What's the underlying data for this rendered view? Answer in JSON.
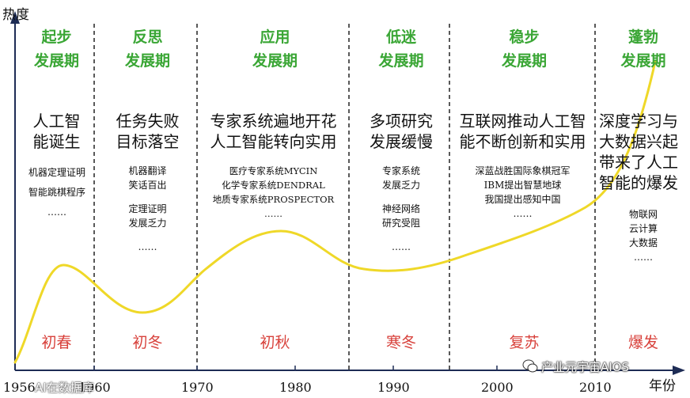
{
  "axes": {
    "y_label": "热度",
    "x_label": "年份",
    "x_ticks": [
      "1956",
      "1960",
      "1970",
      "1980",
      "1990",
      "2000",
      "2010"
    ]
  },
  "phases": [
    {
      "phase_line1": "起步",
      "phase_line2": "发展期",
      "heading": [
        "人工智",
        "能诞生"
      ],
      "details": [
        "机器定理证明",
        "智能跳棋程序",
        "……"
      ],
      "season": "初春"
    },
    {
      "phase_line1": "反思",
      "phase_line2": "发展期",
      "heading": [
        "任务失败",
        "目标落空"
      ],
      "details": [
        "机器翻译",
        "笑话百出",
        "定理证明",
        "发展乏力",
        "……"
      ],
      "season": "初冬"
    },
    {
      "phase_line1": "应用",
      "phase_line2": "发展期",
      "heading": [
        "专家系统遍地开花",
        "人工智能转向实用"
      ],
      "details": [
        "医疗专家系统MYCIN",
        "化学专家系统DENDRAL",
        "地质专家系统PROSPECTOR",
        "……"
      ],
      "season": "初秋"
    },
    {
      "phase_line1": "低迷",
      "phase_line2": "发展期",
      "heading": [
        "多项研究",
        "发展缓慢"
      ],
      "details": [
        "专家系统",
        "发展乏力",
        "神经网络",
        "研究受阻",
        "……"
      ],
      "season": "寒冬"
    },
    {
      "phase_line1": "稳步",
      "phase_line2": "发展期",
      "heading": [
        "互联网推动人工智",
        "能不断创新和实用"
      ],
      "details": [
        "深蓝战胜国际象棋冠军",
        "IBM提出智慧地球",
        "我国提出感知中国",
        "……"
      ],
      "season": "复苏"
    },
    {
      "phase_line1": "蓬勃",
      "phase_line2": "发展期",
      "heading": [
        "深度学习与",
        "大数据兴起",
        "带来了人工",
        "智能的爆发"
      ],
      "details": [
        "物联网",
        "云计算",
        "大数据",
        "……"
      ],
      "season": "爆发"
    }
  ],
  "watermark": {
    "left_text": "AI在数据库",
    "right_text": "产业元宇宙AIOS"
  },
  "colors": {
    "phase_green": "#3aa635",
    "season_red": "#d8423c",
    "curve_yellow": "#efd828",
    "axis_navy": "#1e2c55"
  }
}
